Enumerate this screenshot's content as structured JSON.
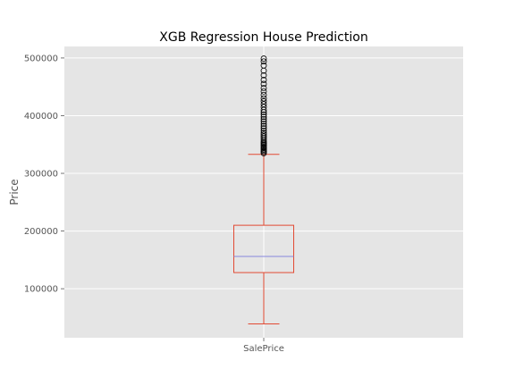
{
  "chart_data": {
    "type": "box",
    "title": "XGB Regression House Prediction",
    "xlabel": "",
    "ylabel": "Price",
    "categories": [
      "SalePrice"
    ],
    "ylim": [
      15000,
      520000
    ],
    "yticks": [
      100000,
      200000,
      300000,
      400000,
      500000
    ],
    "ytick_labels": [
      "100000",
      "200000",
      "300000",
      "400000",
      "500000"
    ],
    "grid": true,
    "box": {
      "whisker_low": 39000,
      "q1": 128000,
      "median": 156000,
      "q3": 210000,
      "whisker_high": 333000
    },
    "outliers": [
      335000,
      337000,
      339000,
      341000,
      343000,
      345000,
      347000,
      349000,
      351000,
      353000,
      355000,
      358000,
      361000,
      364000,
      367000,
      370000,
      374000,
      378000,
      382000,
      386000,
      390000,
      394000,
      398000,
      402000,
      406000,
      410000,
      415000,
      420000,
      425000,
      430000,
      436000,
      442000,
      448000,
      455000,
      462000,
      470000,
      478000,
      487000,
      494000,
      499000
    ],
    "colors": {
      "background": "#e5e5e5",
      "grid": "#ffffff",
      "box": "#e24a33",
      "median": "#8888dd",
      "outlier": "#000000"
    }
  }
}
